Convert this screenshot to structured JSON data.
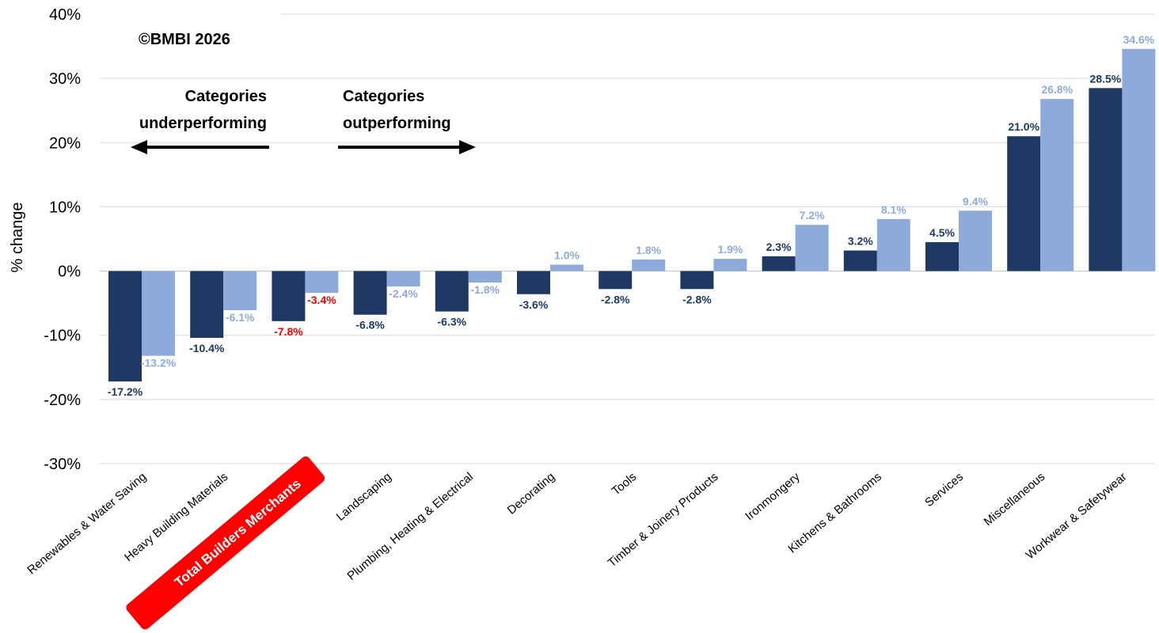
{
  "chart_data": {
    "type": "bar",
    "ylabel": "% change",
    "ylim": [
      -30,
      40
    ],
    "yticks": [
      -30,
      -20,
      -10,
      0,
      10,
      20,
      30,
      40
    ],
    "ytick_labels": [
      "-30%",
      "-20%",
      "-10%",
      "0%",
      "10%",
      "20%",
      "30%",
      "40%"
    ],
    "grid": true,
    "categories": [
      "Renewables & Water Saving",
      "Heavy Building Materials",
      "Total Builders Merchants",
      "Landscaping",
      "Plumbing, Heating & Electrical",
      "Decorating",
      "Tools",
      "Timber & Joinery Products",
      "Ironmongery",
      "Kitchens & Bathrooms",
      "Services",
      "Miscellaneous",
      "Workwear & Safetywear"
    ],
    "highlighted_category": "Total Builders Merchants",
    "series": [
      {
        "color": "#1f3864",
        "values": [
          -17.2,
          -10.4,
          -7.8,
          -6.8,
          -6.3,
          -3.6,
          -2.8,
          -2.8,
          2.3,
          3.2,
          4.5,
          21.0,
          28.5
        ],
        "labels": [
          "-17.2%",
          "-10.4%",
          "-7.8%",
          "-6.8%",
          "-6.3%",
          "-3.6%",
          "-2.8%",
          "-2.8%",
          "2.3%",
          "3.2%",
          "4.5%",
          "21.0%",
          "28.5%"
        ]
      },
      {
        "color": "#8eaadb",
        "values": [
          -13.2,
          -6.1,
          -3.4,
          -2.4,
          -1.8,
          1.0,
          1.8,
          1.9,
          7.2,
          8.1,
          9.4,
          26.8,
          34.6
        ],
        "labels": [
          "-13.2%",
          "-6.1%",
          "-3.4%",
          "-2.4%",
          "-1.8%",
          "1.0%",
          "1.8%",
          "1.9%",
          "7.2%",
          "8.1%",
          "9.4%",
          "26.8%",
          "34.6%"
        ]
      }
    ],
    "highlight_label_color": "#ff0000",
    "highlight_badge_color": "#ff0000",
    "annotations": {
      "copyright": "©BMBI 2026",
      "left_line1": "Categories",
      "left_line2": "underperforming",
      "right_line1": "Categories",
      "right_line2": "outperforming"
    }
  }
}
